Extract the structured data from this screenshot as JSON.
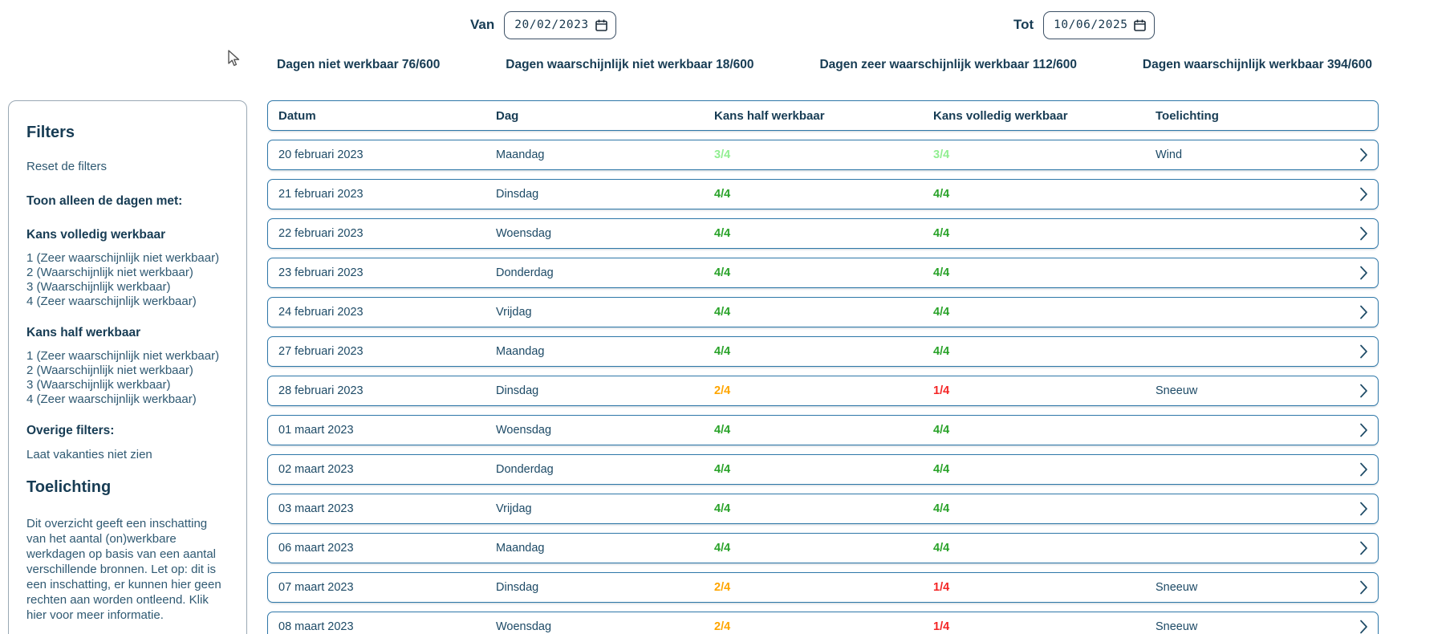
{
  "toolbar": {
    "van_label": "Van",
    "van_value": "20/02/2023",
    "tot_label": "Tot",
    "tot_value": "10/06/2025"
  },
  "stats": [
    "Dagen niet werkbaar 76/600",
    "Dagen waarschijnlijk niet werkbaar 18/600",
    "Dagen zeer waarschijnlijk werkbaar 112/600",
    "Dagen waarschijnlijk werkbaar 394/600"
  ],
  "sidebar": {
    "title": "Filters",
    "reset_label": "Reset de filters",
    "section_title": "Toon alleen de dagen met:",
    "groups": [
      {
        "title": "Kans volledig werkbaar",
        "options": [
          "1 (Zeer waarschijnlijk niet werkbaar)",
          "2 (Waarschijnlijk niet werkbaar)",
          "3 (Waarschijnlijk werkbaar)",
          "4 (Zeer waarschijnlijk werkbaar)"
        ]
      },
      {
        "title": "Kans half werkbaar",
        "options": [
          "1 (Zeer waarschijnlijk niet werkbaar)",
          "2 (Waarschijnlijk niet werkbaar)",
          "3 (Waarschijnlijk werkbaar)",
          "4 (Zeer waarschijnlijk werkbaar)"
        ]
      }
    ],
    "other_filters_title": "Overige filters:",
    "other_filters": [
      "Laat vakanties niet zien"
    ],
    "explanation_title": "Toelichting",
    "explanation_text": "Dit overzicht geeft een inschatting van het aantal (on)werkbare werkdagen op basis van een aantal verschillende bronnen. Let op: dit is een inschatting, er kunnen hier geen rechten aan worden ontleend. Klik hier voor meer informatie."
  },
  "table": {
    "columns": [
      "Datum",
      "Dag",
      "Kans half werkbaar",
      "Kans volledig werkbaar",
      "Toelichting"
    ],
    "rows": [
      {
        "datum": "20 februari 2023",
        "dag": "Maandag",
        "kans_half": {
          "value": "3/4",
          "color": "light-green"
        },
        "kans_volledig": {
          "value": "3/4",
          "color": "light-green"
        },
        "toelichting": "Wind"
      },
      {
        "datum": "21 februari 2023",
        "dag": "Dinsdag",
        "kans_half": {
          "value": "4/4",
          "color": "green"
        },
        "kans_volledig": {
          "value": "4/4",
          "color": "green"
        },
        "toelichting": ""
      },
      {
        "datum": "22 februari 2023",
        "dag": "Woensdag",
        "kans_half": {
          "value": "4/4",
          "color": "green"
        },
        "kans_volledig": {
          "value": "4/4",
          "color": "green"
        },
        "toelichting": ""
      },
      {
        "datum": "23 februari 2023",
        "dag": "Donderdag",
        "kans_half": {
          "value": "4/4",
          "color": "green"
        },
        "kans_volledig": {
          "value": "4/4",
          "color": "green"
        },
        "toelichting": ""
      },
      {
        "datum": "24 februari 2023",
        "dag": "Vrijdag",
        "kans_half": {
          "value": "4/4",
          "color": "green"
        },
        "kans_volledig": {
          "value": "4/4",
          "color": "green"
        },
        "toelichting": ""
      },
      {
        "datum": "27 februari 2023",
        "dag": "Maandag",
        "kans_half": {
          "value": "4/4",
          "color": "green"
        },
        "kans_volledig": {
          "value": "4/4",
          "color": "green"
        },
        "toelichting": ""
      },
      {
        "datum": "28 februari 2023",
        "dag": "Dinsdag",
        "kans_half": {
          "value": "2/4",
          "color": "orange"
        },
        "kans_volledig": {
          "value": "1/4",
          "color": "red"
        },
        "toelichting": "Sneeuw"
      },
      {
        "datum": "01 maart 2023",
        "dag": "Woensdag",
        "kans_half": {
          "value": "4/4",
          "color": "green"
        },
        "kans_volledig": {
          "value": "4/4",
          "color": "green"
        },
        "toelichting": ""
      },
      {
        "datum": "02 maart 2023",
        "dag": "Donderdag",
        "kans_half": {
          "value": "4/4",
          "color": "green"
        },
        "kans_volledig": {
          "value": "4/4",
          "color": "green"
        },
        "toelichting": ""
      },
      {
        "datum": "03 maart 2023",
        "dag": "Vrijdag",
        "kans_half": {
          "value": "4/4",
          "color": "green"
        },
        "kans_volledig": {
          "value": "4/4",
          "color": "green"
        },
        "toelichting": ""
      },
      {
        "datum": "06 maart 2023",
        "dag": "Maandag",
        "kans_half": {
          "value": "4/4",
          "color": "green"
        },
        "kans_volledig": {
          "value": "4/4",
          "color": "green"
        },
        "toelichting": ""
      },
      {
        "datum": "07 maart 2023",
        "dag": "Dinsdag",
        "kans_half": {
          "value": "2/4",
          "color": "orange"
        },
        "kans_volledig": {
          "value": "1/4",
          "color": "red"
        },
        "toelichting": "Sneeuw"
      },
      {
        "datum": "08 maart 2023",
        "dag": "Woensdag",
        "kans_half": {
          "value": "2/4",
          "color": "orange"
        },
        "kans_volledig": {
          "value": "1/4",
          "color": "red"
        },
        "toelichting": "Sneeuw"
      }
    ]
  },
  "colors": {
    "navy_text": "#1d4a66",
    "card_border_blue": "#2e77a8",
    "sidebar_border_gray": "#9aa8b4",
    "kans_green": "#28a228",
    "kans_light_green": "#90ee90",
    "kans_orange": "#ffa500",
    "kans_red": "#f42525"
  }
}
